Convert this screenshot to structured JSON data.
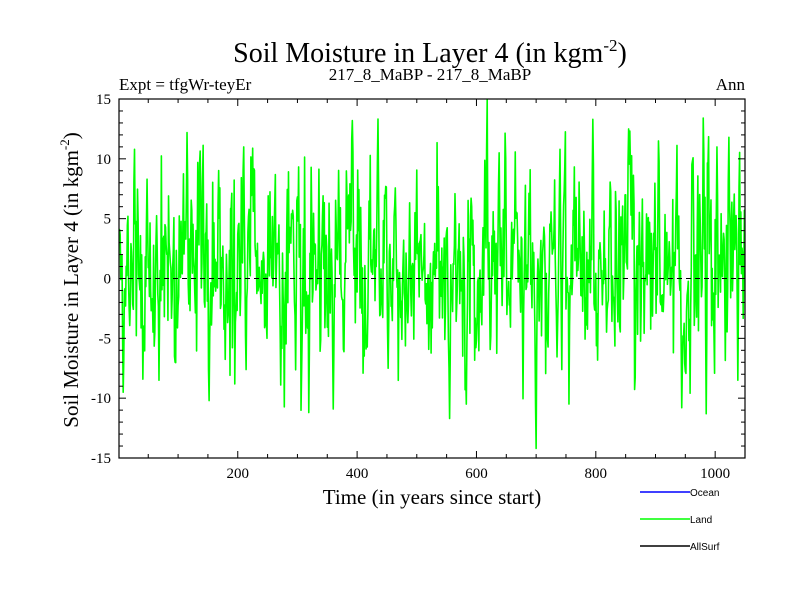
{
  "chart_data": {
    "type": "line",
    "title": "Soil Moisture in Layer 4 (in kgm",
    "title_superscript": "-2",
    "title_close": ")",
    "subtitle_left": "Expt = tfgWr-teyEr",
    "subtitle_center": "217_8_MaBP - 217_8_MaBP",
    "subtitle_right": "Ann",
    "xlabel": "Time (in years since start)",
    "ylabel": "Soil Moisture in Layer 4 (in kgm",
    "ylabel_superscript": "-2",
    "ylabel_close": ")",
    "xlim": [
      1,
      1050
    ],
    "ylim": [
      -15,
      15
    ],
    "xticks": [
      200,
      400,
      600,
      800,
      1000
    ],
    "yticks": [
      15,
      10,
      5,
      0,
      -5,
      -10,
      -15
    ],
    "zero_line": true,
    "series_style": {
      "generation": "synthetic noise approximation of annual land values",
      "count": 1050,
      "mean": 1.2,
      "amplitude": 3.8
    },
    "anchors": [
      {
        "x": 1,
        "y": 3
      },
      {
        "x": 8,
        "y": -9.5
      },
      {
        "x": 27,
        "y": 10.8
      },
      {
        "x": 48,
        "y": 8.3
      },
      {
        "x": 68,
        "y": -8.5
      },
      {
        "x": 115,
        "y": 12.2
      },
      {
        "x": 152,
        "y": -10.2
      },
      {
        "x": 210,
        "y": 11
      },
      {
        "x": 272,
        "y": -8.9
      },
      {
        "x": 360,
        "y": -10.9
      },
      {
        "x": 392,
        "y": 13.2
      },
      {
        "x": 452,
        "y": -7.5
      },
      {
        "x": 555,
        "y": -11.7
      },
      {
        "x": 638,
        "y": 10.5
      },
      {
        "x": 700,
        "y": -14.2
      },
      {
        "x": 740,
        "y": 10.8
      },
      {
        "x": 795,
        "y": 13.3
      },
      {
        "x": 855,
        "y": 12.5
      },
      {
        "x": 905,
        "y": 11.5
      },
      {
        "x": 985,
        "y": -11.3
      },
      {
        "x": 1003,
        "y": 11
      },
      {
        "x": 1023,
        "y": 11.8
      },
      {
        "x": 1038,
        "y": -8.5
      },
      {
        "x": 1050,
        "y": 5
      }
    ],
    "series": [
      {
        "name": "Ocean",
        "color": "#0000ff",
        "visible": false
      },
      {
        "name": "Land",
        "color": "#00ff00",
        "visible": true
      },
      {
        "name": "AllSurf",
        "color": "#000000",
        "visible": false
      }
    ],
    "legend_position": "bottom-right"
  }
}
